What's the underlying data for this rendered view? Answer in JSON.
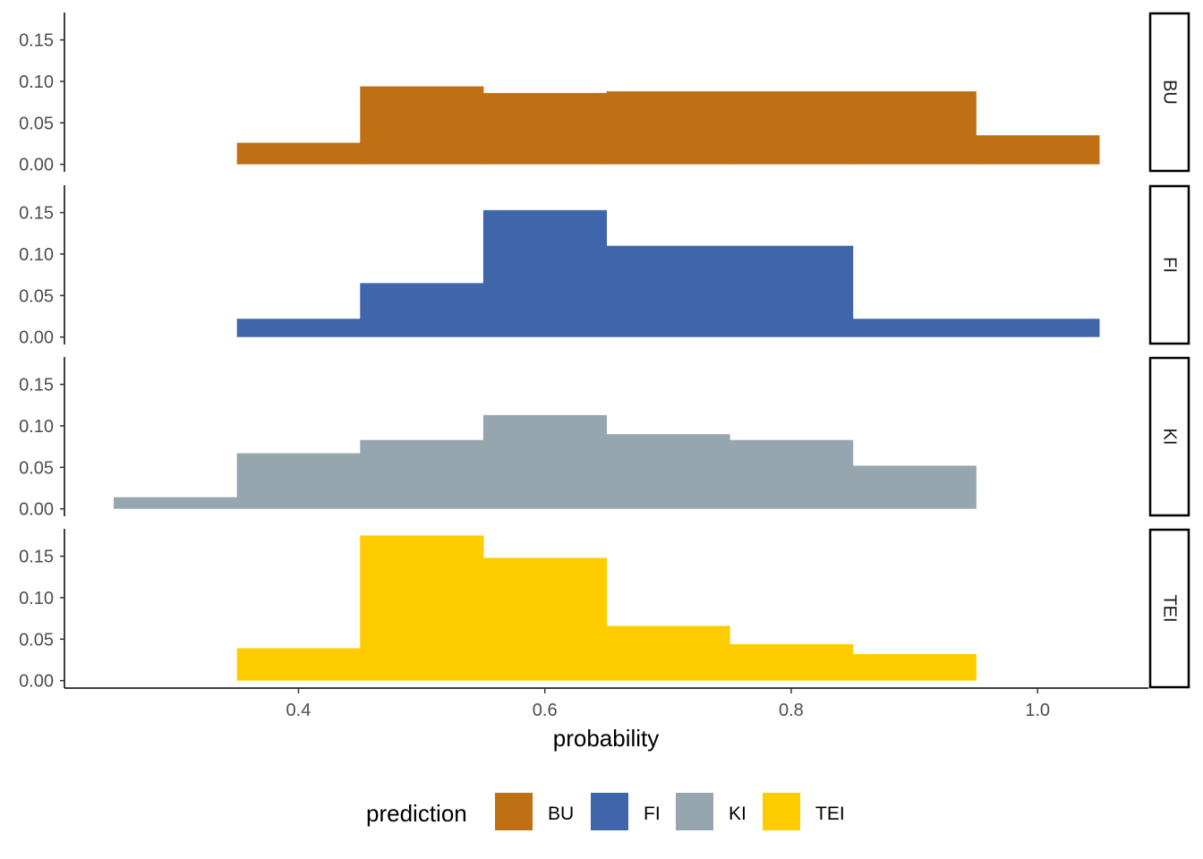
{
  "chart_data": {
    "type": "bar",
    "subtype": "faceted-histogram",
    "xlabel": "probability",
    "ylabel": "",
    "xlim": [
      0.21,
      1.09
    ],
    "ylim": [
      -0.009,
      0.183
    ],
    "x_ticks": [
      0.4,
      0.6,
      0.8,
      1.0
    ],
    "x_tick_labels": [
      "0.4",
      "0.6",
      "0.8",
      "1.0"
    ],
    "y_ticks": [
      0,
      0.05,
      0.1,
      0.15
    ],
    "y_tick_labels": [
      "0.00",
      "0.05",
      "0.10",
      "0.15"
    ],
    "bin_width": 0.1,
    "grid": false,
    "legend": {
      "title": "prediction",
      "placement": "bottom",
      "entries": [
        "BU",
        "FI",
        "KI",
        "TEI"
      ]
    },
    "series": [
      {
        "name": "BU",
        "color": "#C07014",
        "bins": [
          [
            0.35,
            0.45,
            0.026
          ],
          [
            0.45,
            0.55,
            0.094
          ],
          [
            0.55,
            0.65,
            0.086
          ],
          [
            0.65,
            0.75,
            0.088
          ],
          [
            0.75,
            0.85,
            0.088
          ],
          [
            0.85,
            0.95,
            0.088
          ],
          [
            0.95,
            1.05,
            0.035
          ]
        ]
      },
      {
        "name": "FI",
        "color": "#3F66AA",
        "bins": [
          [
            0.35,
            0.45,
            0.022
          ],
          [
            0.45,
            0.55,
            0.065
          ],
          [
            0.55,
            0.65,
            0.153
          ],
          [
            0.65,
            0.75,
            0.11
          ],
          [
            0.75,
            0.85,
            0.11
          ],
          [
            0.85,
            0.95,
            0.022
          ],
          [
            0.95,
            1.05,
            0.022
          ]
        ]
      },
      {
        "name": "KI",
        "color": "#95A6AF",
        "bins": [
          [
            0.25,
            0.35,
            0.014
          ],
          [
            0.35,
            0.45,
            0.067
          ],
          [
            0.45,
            0.55,
            0.083
          ],
          [
            0.55,
            0.65,
            0.113
          ],
          [
            0.65,
            0.75,
            0.09
          ],
          [
            0.75,
            0.85,
            0.083
          ],
          [
            0.85,
            0.95,
            0.052
          ]
        ]
      },
      {
        "name": "TEI",
        "color": "#FFCC00",
        "bins": [
          [
            0.35,
            0.45,
            0.039
          ],
          [
            0.45,
            0.55,
            0.175
          ],
          [
            0.55,
            0.65,
            0.148
          ],
          [
            0.65,
            0.75,
            0.066
          ],
          [
            0.75,
            0.85,
            0.044
          ],
          [
            0.85,
            0.95,
            0.032
          ]
        ]
      }
    ]
  }
}
